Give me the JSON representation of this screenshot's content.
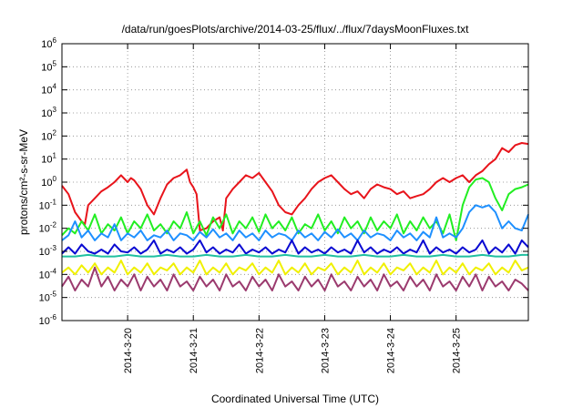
{
  "chart_data": {
    "type": "line",
    "title": "/data/run/goesPlots/archive/2014-03-25/flux/../flux/7daysMoonFluxes.txt",
    "xlabel": "Coordinated Universal Time (UTC)",
    "ylabel": "protons/cm²-s-sr-MeV",
    "y_scale": "log",
    "ylim": [
      1e-06,
      1000000.0
    ],
    "xlim": [
      0,
      7.1
    ],
    "grid": true,
    "x_ticks": [
      {
        "label": "2014-3-20",
        "x": 1.0
      },
      {
        "label": "2014-3-21",
        "x": 2.0
      },
      {
        "label": "2014-3-22",
        "x": 3.0
      },
      {
        "label": "2014-3-23",
        "x": 4.0
      },
      {
        "label": "2014-3-24",
        "x": 5.0
      },
      {
        "label": "2014-3-25",
        "x": 6.0
      }
    ],
    "y_ticks": [
      {
        "exp": "-6"
      },
      {
        "exp": "-5"
      },
      {
        "exp": "-4"
      },
      {
        "exp": "-3"
      },
      {
        "exp": "-2"
      },
      {
        "exp": "-1"
      },
      {
        "exp": "0"
      },
      {
        "exp": "1"
      },
      {
        "exp": "2"
      },
      {
        "exp": "3"
      },
      {
        "exp": "4"
      },
      {
        "exp": "5"
      },
      {
        "exp": "6"
      }
    ],
    "series": [
      {
        "color": "#e8141b",
        "x": [
          0,
          0.1,
          0.2,
          0.3,
          0.35,
          0.4,
          0.5,
          0.6,
          0.7,
          0.8,
          0.9,
          1.0,
          1.05,
          1.1,
          1.2,
          1.3,
          1.4,
          1.5,
          1.6,
          1.7,
          1.8,
          1.9,
          1.95,
          2.0,
          2.05,
          2.1,
          2.2,
          2.3,
          2.4,
          2.45,
          2.5,
          2.6,
          2.7,
          2.8,
          2.9,
          3.0,
          3.1,
          3.2,
          3.3,
          3.4,
          3.5,
          3.6,
          3.7,
          3.8,
          3.9,
          4.0,
          4.1,
          4.2,
          4.3,
          4.4,
          4.5,
          4.6,
          4.7,
          4.8,
          4.9,
          5.0,
          5.1,
          5.2,
          5.3,
          5.4,
          5.5,
          5.6,
          5.7,
          5.8,
          5.9,
          6.0,
          6.1,
          6.2,
          6.3,
          6.4,
          6.5,
          6.6,
          6.7,
          6.8,
          6.9,
          7.0,
          7.1
        ],
        "y": [
          0.7,
          0.3,
          0.05,
          0.02,
          0.015,
          0.1,
          0.2,
          0.4,
          0.6,
          1.0,
          2.0,
          1.0,
          1.5,
          1.2,
          0.5,
          0.1,
          0.04,
          0.2,
          0.8,
          1.5,
          2.0,
          3.5,
          1.0,
          0.6,
          0.3,
          0.008,
          0.01,
          0.02,
          0.03,
          0.008,
          0.2,
          0.5,
          1.0,
          2.0,
          1.5,
          2.5,
          1.0,
          0.4,
          0.1,
          0.05,
          0.04,
          0.1,
          0.2,
          0.5,
          1.0,
          1.5,
          2.0,
          1.0,
          0.5,
          0.3,
          0.4,
          0.2,
          0.5,
          0.8,
          0.6,
          0.5,
          0.3,
          0.4,
          0.2,
          0.25,
          0.3,
          0.5,
          1.0,
          1.5,
          1.0,
          1.5,
          2.0,
          1.0,
          2.0,
          3.0,
          6.0,
          10.0,
          30.0,
          20.0,
          40.0,
          50.0,
          45.0
        ]
      },
      {
        "color": "#22ee22",
        "x": [
          0,
          0.1,
          0.2,
          0.3,
          0.4,
          0.5,
          0.6,
          0.7,
          0.8,
          0.9,
          1.0,
          1.1,
          1.2,
          1.3,
          1.4,
          1.5,
          1.6,
          1.7,
          1.8,
          1.9,
          2.0,
          2.1,
          2.2,
          2.3,
          2.4,
          2.5,
          2.6,
          2.7,
          2.8,
          2.9,
          3.0,
          3.1,
          3.2,
          3.3,
          3.4,
          3.5,
          3.6,
          3.7,
          3.8,
          3.9,
          4.0,
          4.1,
          4.2,
          4.3,
          4.4,
          4.5,
          4.6,
          4.7,
          4.8,
          4.9,
          5.0,
          5.1,
          5.2,
          5.3,
          5.4,
          5.5,
          5.6,
          5.7,
          5.8,
          5.9,
          6.0,
          6.1,
          6.2,
          6.3,
          6.4,
          6.5,
          6.6,
          6.7,
          6.8,
          6.9,
          7.0,
          7.1
        ],
        "y": [
          0.005,
          0.01,
          0.006,
          0.02,
          0.008,
          0.04,
          0.006,
          0.015,
          0.008,
          0.03,
          0.006,
          0.02,
          0.01,
          0.04,
          0.008,
          0.015,
          0.006,
          0.02,
          0.01,
          0.05,
          0.006,
          0.02,
          0.005,
          0.03,
          0.01,
          0.04,
          0.006,
          0.02,
          0.01,
          0.03,
          0.007,
          0.04,
          0.01,
          0.02,
          0.008,
          0.03,
          0.006,
          0.015,
          0.01,
          0.04,
          0.008,
          0.02,
          0.006,
          0.03,
          0.01,
          0.02,
          0.006,
          0.03,
          0.008,
          0.02,
          0.01,
          0.04,
          0.006,
          0.02,
          0.008,
          0.03,
          0.01,
          0.02,
          0.006,
          0.04,
          0.003,
          0.1,
          0.6,
          1.3,
          1.5,
          1.0,
          0.2,
          0.06,
          0.3,
          0.5,
          0.6,
          0.8
        ]
      },
      {
        "color": "#1e90ff",
        "x": [
          0,
          0.1,
          0.2,
          0.3,
          0.4,
          0.5,
          0.6,
          0.7,
          0.8,
          0.9,
          1.0,
          1.1,
          1.2,
          1.3,
          1.4,
          1.5,
          1.6,
          1.7,
          1.8,
          1.9,
          2.0,
          2.1,
          2.2,
          2.3,
          2.4,
          2.5,
          2.6,
          2.7,
          2.8,
          2.9,
          3.0,
          3.1,
          3.2,
          3.3,
          3.4,
          3.5,
          3.6,
          3.7,
          3.8,
          3.9,
          4.0,
          4.1,
          4.2,
          4.3,
          4.4,
          4.5,
          4.6,
          4.7,
          4.8,
          4.9,
          5.0,
          5.1,
          5.2,
          5.3,
          5.4,
          5.5,
          5.6,
          5.7,
          5.8,
          5.9,
          6.0,
          6.1,
          6.2,
          6.3,
          6.4,
          6.5,
          6.6,
          6.7,
          6.8,
          6.9,
          7.0,
          7.1
        ],
        "y": [
          0.003,
          0.005,
          0.02,
          0.004,
          0.008,
          0.003,
          0.006,
          0.004,
          0.015,
          0.003,
          0.006,
          0.004,
          0.008,
          0.003,
          0.005,
          0.004,
          0.008,
          0.003,
          0.006,
          0.005,
          0.003,
          0.007,
          0.004,
          0.009,
          0.004,
          0.006,
          0.003,
          0.008,
          0.004,
          0.006,
          0.003,
          0.008,
          0.004,
          0.006,
          0.005,
          0.003,
          0.008,
          0.004,
          0.006,
          0.003,
          0.007,
          0.004,
          0.009,
          0.004,
          0.006,
          0.003,
          0.008,
          0.004,
          0.006,
          0.005,
          0.003,
          0.008,
          0.004,
          0.006,
          0.003,
          0.007,
          0.004,
          0.03,
          0.004,
          0.006,
          0.004,
          0.01,
          0.05,
          0.1,
          0.08,
          0.1,
          0.05,
          0.01,
          0.02,
          0.01,
          0.008,
          0.04
        ]
      },
      {
        "color": "#0a0ad2",
        "x": [
          0,
          0.1,
          0.2,
          0.3,
          0.4,
          0.5,
          0.6,
          0.7,
          0.8,
          0.9,
          1.0,
          1.1,
          1.2,
          1.3,
          1.4,
          1.5,
          1.6,
          1.7,
          1.8,
          1.9,
          2.0,
          2.1,
          2.2,
          2.3,
          2.4,
          2.5,
          2.6,
          2.7,
          2.8,
          2.9,
          3.0,
          3.1,
          3.2,
          3.3,
          3.4,
          3.5,
          3.6,
          3.7,
          3.8,
          3.9,
          4.0,
          4.1,
          4.2,
          4.3,
          4.4,
          4.5,
          4.6,
          4.7,
          4.8,
          4.9,
          5.0,
          5.1,
          5.2,
          5.3,
          5.4,
          5.5,
          5.6,
          5.7,
          5.8,
          5.9,
          6.0,
          6.1,
          6.2,
          6.3,
          6.4,
          6.5,
          6.6,
          6.7,
          6.8,
          6.9,
          7.0,
          7.1
        ],
        "y": [
          0.0008,
          0.0015,
          0.0008,
          0.002,
          0.001,
          0.0008,
          0.0012,
          0.0008,
          0.002,
          0.001,
          0.0009,
          0.0015,
          0.0008,
          0.0012,
          0.003,
          0.0008,
          0.0012,
          0.0009,
          0.0015,
          0.0008,
          0.0012,
          0.003,
          0.0009,
          0.0015,
          0.0008,
          0.0012,
          0.0009,
          0.002,
          0.0008,
          0.0012,
          0.0009,
          0.0015,
          0.0008,
          0.0012,
          0.0009,
          0.003,
          0.0008,
          0.0015,
          0.0009,
          0.0012,
          0.0008,
          0.0015,
          0.0009,
          0.0012,
          0.0008,
          0.003,
          0.0009,
          0.0015,
          0.0008,
          0.0012,
          0.0009,
          0.0015,
          0.0008,
          0.0012,
          0.0009,
          0.003,
          0.0008,
          0.0015,
          0.0009,
          0.0012,
          0.0008,
          0.0015,
          0.0009,
          0.0012,
          0.003,
          0.0008,
          0.0015,
          0.0009,
          0.002,
          0.0008,
          0.003,
          0.0015
        ]
      },
      {
        "color": "#20c0a0",
        "x": [
          0,
          0.2,
          0.4,
          0.6,
          0.8,
          1.0,
          1.2,
          1.4,
          1.6,
          1.8,
          2.0,
          2.2,
          2.4,
          2.6,
          2.8,
          3.0,
          3.2,
          3.4,
          3.6,
          3.8,
          4.0,
          4.2,
          4.4,
          4.6,
          4.8,
          5.0,
          5.2,
          5.4,
          5.6,
          5.8,
          6.0,
          6.2,
          6.4,
          6.6,
          6.8,
          7.0,
          7.1
        ],
        "y": [
          0.0006,
          0.0006,
          0.0007,
          0.0006,
          0.0006,
          0.0007,
          0.0006,
          0.0006,
          0.0007,
          0.0006,
          0.0006,
          0.0007,
          0.0006,
          0.0006,
          0.0007,
          0.0006,
          0.0006,
          0.0007,
          0.0006,
          0.0006,
          0.0007,
          0.0006,
          0.0006,
          0.0007,
          0.0006,
          0.0006,
          0.0007,
          0.0006,
          0.0006,
          0.0007,
          0.0006,
          0.0006,
          0.0007,
          0.0006,
          0.0006,
          0.0007,
          0.0007
        ]
      },
      {
        "color": "#f0f000",
        "x": [
          0,
          0.1,
          0.2,
          0.3,
          0.4,
          0.5,
          0.6,
          0.7,
          0.8,
          0.9,
          1.0,
          1.1,
          1.2,
          1.3,
          1.4,
          1.5,
          1.6,
          1.7,
          1.8,
          1.9,
          2.0,
          2.1,
          2.2,
          2.3,
          2.4,
          2.5,
          2.6,
          2.7,
          2.8,
          2.9,
          3.0,
          3.1,
          3.2,
          3.3,
          3.4,
          3.5,
          3.6,
          3.7,
          3.8,
          3.9,
          4.0,
          4.1,
          4.2,
          4.3,
          4.4,
          4.5,
          4.6,
          4.7,
          4.8,
          4.9,
          5.0,
          5.1,
          5.2,
          5.3,
          5.4,
          5.5,
          5.6,
          5.7,
          5.8,
          5.9,
          6.0,
          6.1,
          6.2,
          6.3,
          6.4,
          6.5,
          6.6,
          6.7,
          6.8,
          6.9,
          7.0,
          7.1
        ],
        "y": [
          0.00012,
          0.0002,
          0.0001,
          0.00025,
          0.00012,
          0.0003,
          0.0001,
          0.0002,
          0.00012,
          0.0004,
          0.0001,
          0.0002,
          0.00012,
          0.0003,
          0.0001,
          0.0002,
          0.00015,
          0.0003,
          0.0001,
          0.0002,
          0.00012,
          0.0004,
          0.0001,
          0.0002,
          0.00012,
          0.0003,
          0.0001,
          0.0002,
          0.00015,
          0.0003,
          0.0001,
          0.0002,
          0.00012,
          0.0004,
          0.0001,
          0.0002,
          0.00012,
          0.0003,
          0.0001,
          0.0002,
          0.00015,
          0.0003,
          0.0001,
          0.0002,
          0.00012,
          0.0004,
          0.0001,
          0.0002,
          0.00012,
          0.0003,
          0.0001,
          0.0002,
          0.00015,
          0.0003,
          0.0001,
          0.0002,
          0.00012,
          0.0004,
          0.0001,
          0.0002,
          0.00012,
          0.0003,
          0.0001,
          0.0002,
          0.00015,
          0.0003,
          0.0001,
          0.0002,
          0.00012,
          0.0004,
          0.00015,
          0.0002
        ]
      },
      {
        "color": "#9b3a6e",
        "x": [
          0,
          0.1,
          0.2,
          0.3,
          0.4,
          0.5,
          0.6,
          0.7,
          0.8,
          0.9,
          1.0,
          1.1,
          1.2,
          1.3,
          1.4,
          1.5,
          1.6,
          1.7,
          1.8,
          1.9,
          2.0,
          2.1,
          2.2,
          2.3,
          2.4,
          2.5,
          2.6,
          2.7,
          2.8,
          2.9,
          3.0,
          3.1,
          3.2,
          3.3,
          3.4,
          3.5,
          3.6,
          3.7,
          3.8,
          3.9,
          4.0,
          4.1,
          4.2,
          4.3,
          4.4,
          4.5,
          4.6,
          4.7,
          4.8,
          4.9,
          5.0,
          5.1,
          5.2,
          5.3,
          5.4,
          5.5,
          5.6,
          5.7,
          5.8,
          5.9,
          6.0,
          6.1,
          6.2,
          6.3,
          6.4,
          6.5,
          6.6,
          6.7,
          6.8,
          6.9,
          7.0,
          7.1
        ],
        "y": [
          3e-05,
          8e-05,
          2e-05,
          6e-05,
          3e-05,
          0.0002,
          3e-05,
          8e-05,
          2e-05,
          6e-05,
          3e-05,
          0.0001,
          2e-05,
          8e-05,
          3e-05,
          6e-05,
          2e-05,
          0.0001,
          3e-05,
          5e-05,
          2e-05,
          8e-05,
          3e-05,
          6e-05,
          2e-05,
          0.0001,
          3e-05,
          5e-05,
          2e-05,
          8e-05,
          3e-05,
          6e-05,
          2e-05,
          0.0001,
          3e-05,
          5e-05,
          2e-05,
          8e-05,
          3e-05,
          6e-05,
          2e-05,
          0.0001,
          3e-05,
          5e-05,
          2e-05,
          8e-05,
          3e-05,
          6e-05,
          2e-05,
          0.0001,
          3e-05,
          5e-05,
          2e-05,
          8e-05,
          3e-05,
          6e-05,
          2e-05,
          0.0001,
          3e-05,
          5e-05,
          2e-05,
          8e-05,
          3e-05,
          0.0001,
          2e-05,
          8e-05,
          3e-05,
          5e-05,
          2e-05,
          6e-05,
          4e-05,
          2e-05
        ]
      }
    ]
  }
}
